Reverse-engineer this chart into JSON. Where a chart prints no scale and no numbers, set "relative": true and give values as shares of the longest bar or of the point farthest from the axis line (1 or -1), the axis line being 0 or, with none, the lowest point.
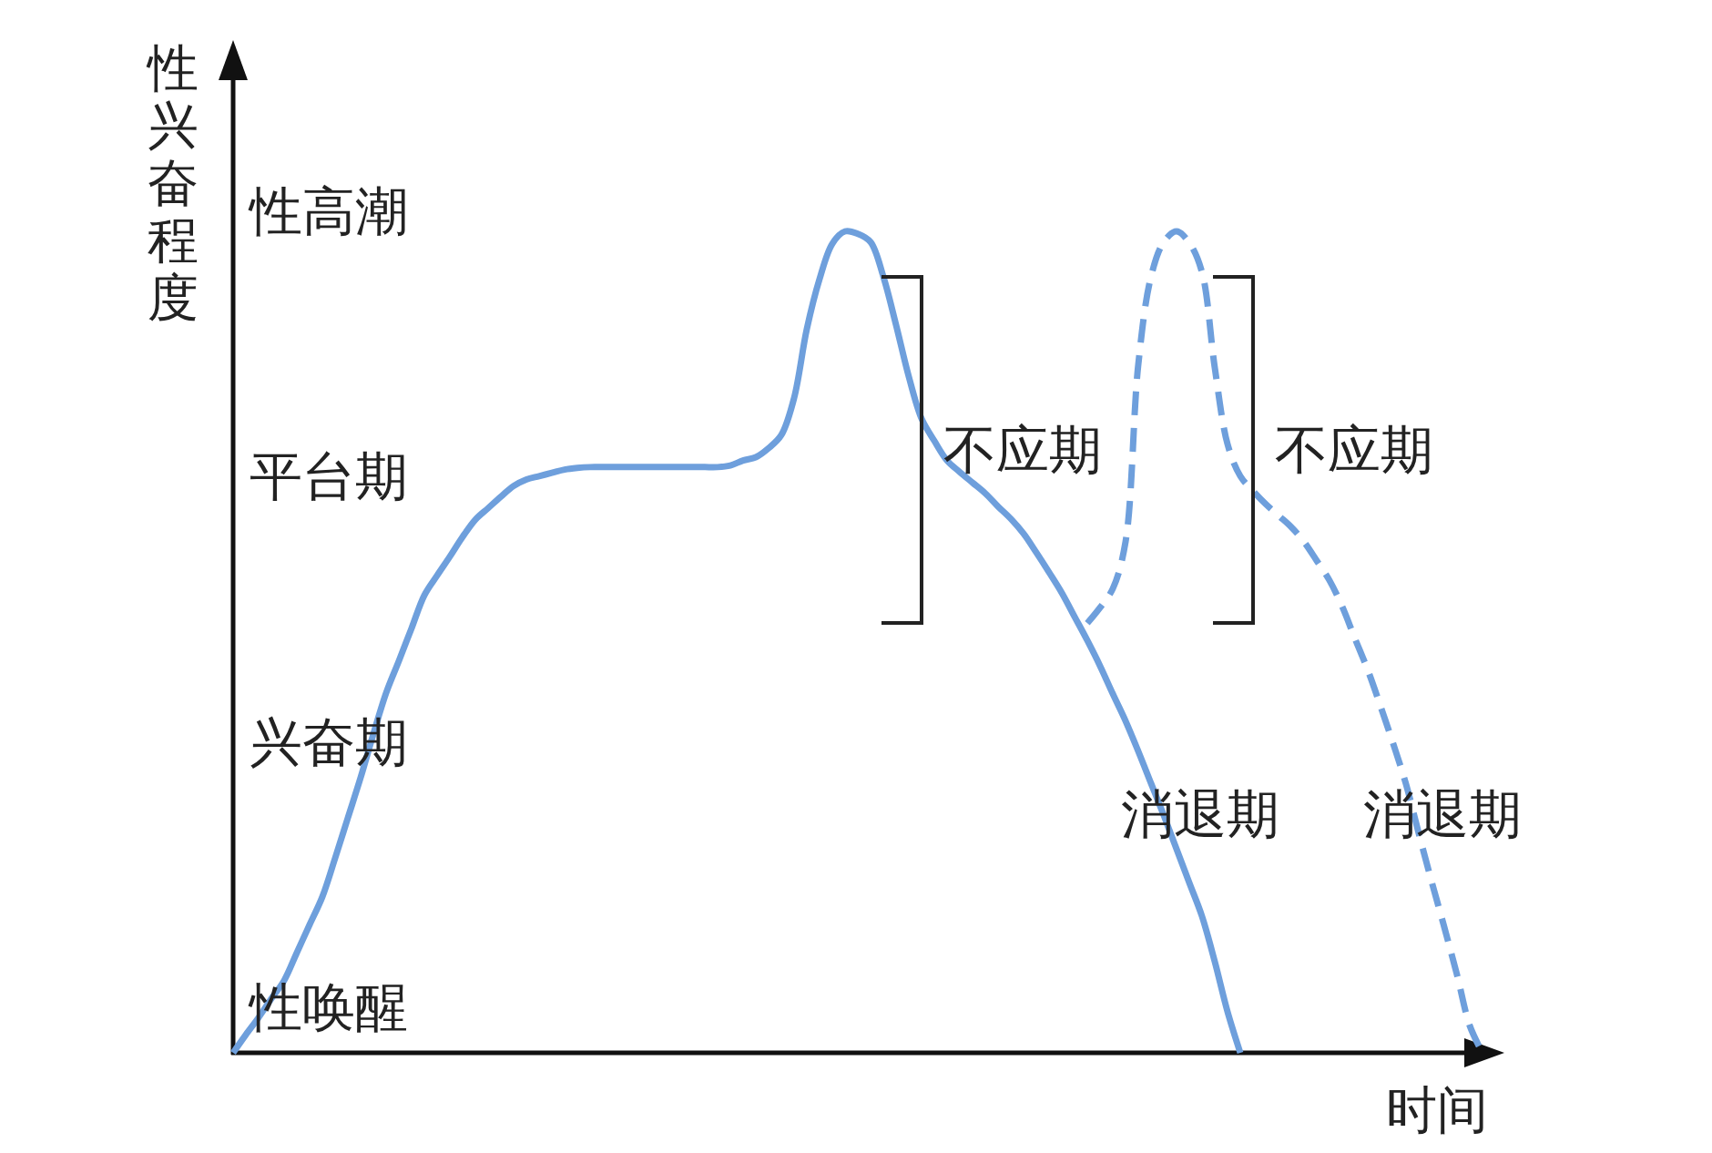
{
  "chart_data": {
    "type": "line",
    "relative": true,
    "xlabel": "时间",
    "ylabel": "性兴奋程度",
    "categories": [
      null,
      null,
      null,
      null,
      null,
      null,
      null,
      null,
      null,
      null,
      null,
      null,
      null,
      null,
      null,
      null,
      null,
      null,
      null,
      null,
      null,
      null,
      null,
      null,
      null,
      null,
      null,
      null,
      null,
      null,
      null,
      null,
      null,
      null,
      null,
      null,
      null,
      null,
      null,
      null,
      null,
      null,
      null,
      null,
      null,
      null,
      null,
      null,
      null,
      null,
      null,
      null,
      null,
      null,
      null,
      null,
      null,
      null,
      null,
      null,
      null,
      null,
      null,
      null,
      null,
      null,
      null,
      null,
      null,
      null,
      null,
      null,
      null,
      null,
      null,
      null,
      null,
      null,
      null,
      null,
      null,
      null,
      null,
      null,
      null,
      null,
      null,
      null,
      null,
      null,
      null,
      null,
      null,
      null,
      null,
      null,
      null,
      null,
      null
    ],
    "series": [
      {
        "color": "#6e9fdc",
        "line_style": "solid",
        "values": [
          0,
          0.022,
          0.043,
          0.066,
          0.088,
          0.122,
          0.156,
          0.19,
          0.237,
          0.286,
          0.335,
          0.388,
          0.438,
          0.477,
          0.517,
          0.557,
          0.581,
          0.604,
          0.628,
          0.649,
          0.663,
          0.677,
          0.69,
          0.698,
          0.702,
          0.706,
          0.71,
          0.712,
          0.713,
          0.713,
          0.713,
          0.713,
          0.713,
          0.713,
          0.713,
          0.713,
          0.713,
          0.713,
          0.713,
          0.715,
          0.721,
          0.725,
          0.736,
          0.752,
          0.797,
          0.881,
          0.942,
          0.985,
          1,
          0.997,
          0.987,
          0.945,
          0.886,
          0.823,
          0.772,
          0.745,
          0.721,
          0.707,
          0.694,
          0.681,
          0.665,
          0.65,
          0.632,
          0.609,
          0.585,
          0.56,
          0.531,
          0.502,
          0.471,
          0.437,
          0.404,
          0.367,
          0.328,
          0.289,
          0.248,
          0.207,
          0.166,
          0.111,
          0.05,
          0,
          null,
          null,
          null,
          null,
          null,
          null,
          null,
          null,
          null,
          null,
          null,
          null,
          null,
          null,
          null,
          null,
          null,
          null,
          null
        ]
      },
      {
        "color": "#6e9fdc",
        "line_style": "dashed",
        "values": [
          null,
          null,
          null,
          null,
          null,
          null,
          null,
          null,
          null,
          null,
          null,
          null,
          null,
          null,
          null,
          null,
          null,
          null,
          null,
          null,
          null,
          null,
          null,
          null,
          null,
          null,
          null,
          null,
          null,
          null,
          null,
          null,
          null,
          null,
          null,
          null,
          null,
          null,
          null,
          null,
          null,
          null,
          null,
          null,
          null,
          null,
          null,
          null,
          null,
          null,
          null,
          null,
          null,
          null,
          null,
          null,
          null,
          null,
          null,
          null,
          null,
          null,
          null,
          null,
          null,
          null,
          null,
          0.523,
          0.542,
          0.565,
          0.622,
          0.838,
          0.945,
          0.987,
          1,
          0.986,
          0.95,
          0.834,
          0.741,
          0.702,
          0.684,
          0.668,
          0.654,
          0.64,
          0.622,
          0.599,
          0.575,
          0.543,
          0.504,
          0.466,
          0.422,
          0.376,
          0.327,
          0.267,
          0.209,
          0.153,
          0.095,
          0.033,
          0
        ]
      }
    ],
    "annotations": [
      "性唤醒",
      "兴奋期",
      "平台期",
      "性高潮",
      "不应期",
      "不应期",
      "消退期",
      "消退期"
    ]
  }
}
